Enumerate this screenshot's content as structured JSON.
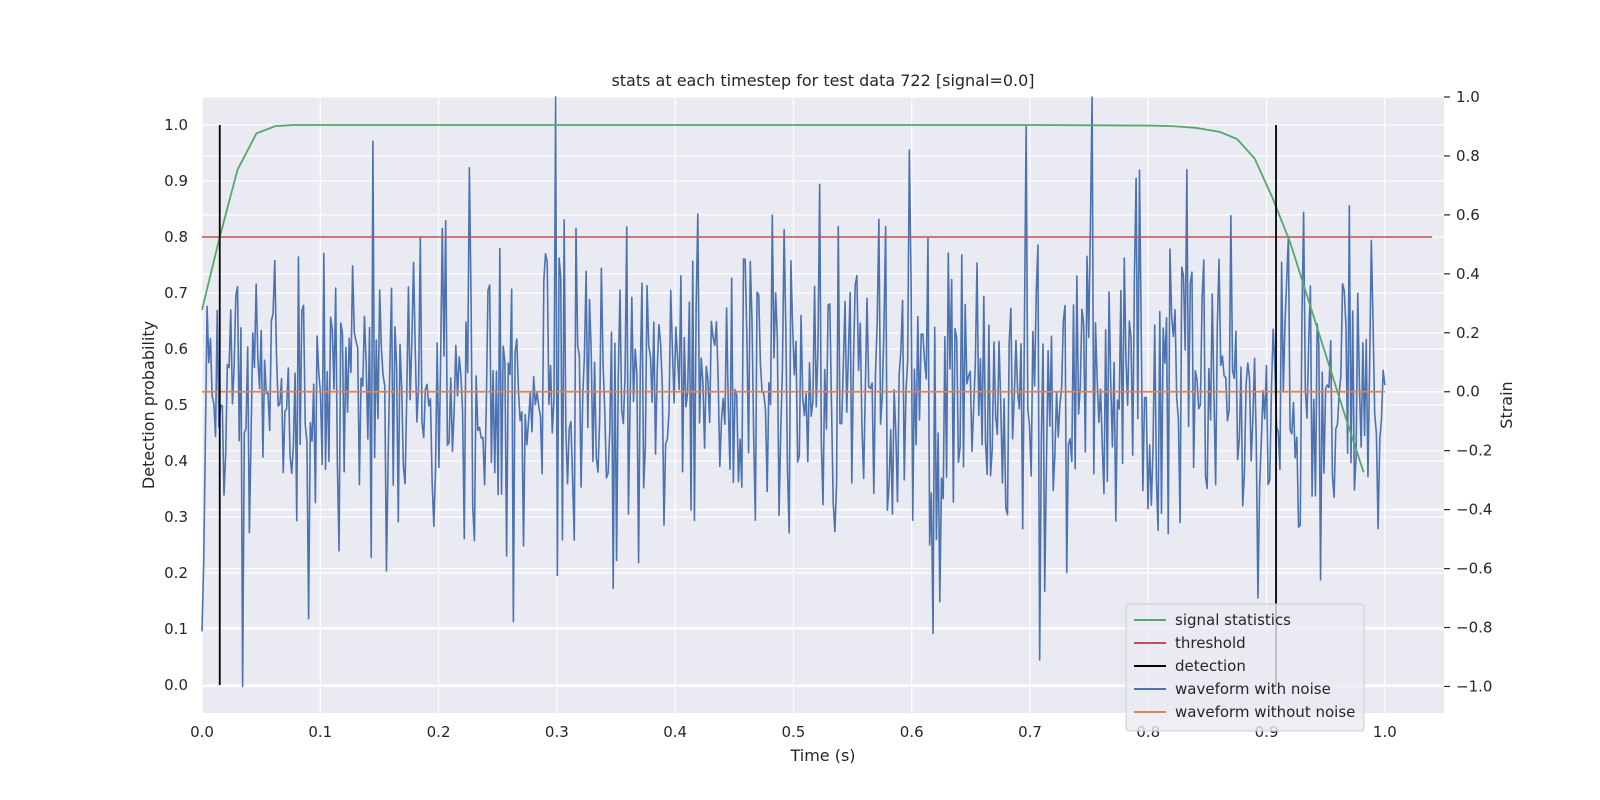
{
  "chart_data": {
    "type": "line",
    "title": "stats at each timestep for test data 722 [signal=0.0]",
    "xlabel": "Time (s)",
    "ylabel": "Detection probability",
    "y2label": "Strain",
    "xlim": [
      0.0,
      1.05
    ],
    "ylim": [
      -0.05,
      1.05
    ],
    "y2lim": [
      -1.09,
      1.0
    ],
    "xticks": [
      0.0,
      0.1,
      0.2,
      0.3,
      0.4,
      0.5,
      0.6,
      0.7,
      0.8,
      0.9,
      1.0
    ],
    "xtick_labels": [
      "0.0",
      "0.1",
      "0.2",
      "0.3",
      "0.4",
      "0.5",
      "0.6",
      "0.7",
      "0.8",
      "0.9",
      "1.0"
    ],
    "yticks": [
      0.0,
      0.1,
      0.2,
      0.3,
      0.4,
      0.5,
      0.6,
      0.7,
      0.8,
      0.9,
      1.0
    ],
    "ytick_labels": [
      "0.0",
      "0.1",
      "0.2",
      "0.3",
      "0.4",
      "0.5",
      "0.6",
      "0.7",
      "0.8",
      "0.9",
      "1.0"
    ],
    "y2ticks": [
      -1.0,
      -0.8,
      -0.6,
      -0.4,
      -0.2,
      0.0,
      0.2,
      0.4,
      0.6,
      0.8,
      1.0
    ],
    "y2tick_labels": [
      "−1.0",
      "−0.8",
      "−0.6",
      "−0.4",
      "−0.2",
      "0.0",
      "0.2",
      "0.4",
      "0.6",
      "0.8",
      "1.0"
    ],
    "grid": true,
    "legend_position": "lower-right",
    "series": [
      {
        "name": "signal statistics",
        "axis": "left",
        "color": "#55a868",
        "x": [
          0.0,
          0.015,
          0.03,
          0.046,
          0.062,
          0.078,
          0.094,
          0.2,
          0.4,
          0.6,
          0.7,
          0.8,
          0.82,
          0.84,
          0.86,
          0.875,
          0.89,
          0.905,
          0.92,
          0.935,
          0.95,
          0.965,
          0.982
        ],
        "y": [
          0.67,
          0.8,
          0.92,
          0.985,
          0.998,
          1.0,
          1.0,
          1.0,
          1.0,
          1.0,
          1.0,
          0.999,
          0.998,
          0.995,
          0.988,
          0.975,
          0.94,
          0.87,
          0.79,
          0.69,
          0.59,
          0.49,
          0.38
        ]
      },
      {
        "name": "threshold",
        "axis": "left",
        "color": "#c44e52",
        "x": [
          0.0,
          1.04
        ],
        "y": [
          0.8,
          0.8
        ]
      },
      {
        "name": "detection",
        "axis": "left",
        "color": "#000000",
        "segments": [
          {
            "x": 0.015,
            "y0": 0.0,
            "y1": 1.0
          },
          {
            "x": 0.908,
            "y0": 0.0,
            "y1": 1.0
          }
        ]
      },
      {
        "name": "waveform with noise",
        "axis": "right",
        "color": "#4c72b0",
        "x_start": 0.0,
        "x_end": 1.0,
        "points": 700,
        "noise_amplitude": 0.27,
        "extremes": [
          {
            "x": 0.034,
            "y": -1.0
          },
          {
            "x": 0.299,
            "y": 1.0
          },
          {
            "x": 0.752,
            "y": 1.0
          },
          {
            "x": 0.145,
            "y": 0.85
          },
          {
            "x": 0.598,
            "y": 0.82
          },
          {
            "x": 0.618,
            "y": -0.82
          },
          {
            "x": 0.708,
            "y": -0.91
          },
          {
            "x": 0.263,
            "y": -0.78
          },
          {
            "x": 0.09,
            "y": -0.77
          },
          {
            "x": 0.893,
            "y": -0.7
          }
        ]
      },
      {
        "name": "waveform without noise",
        "axis": "right",
        "color": "#dd8452",
        "x": [
          0.0,
          1.0
        ],
        "y": [
          0.0,
          0.0
        ]
      }
    ]
  }
}
